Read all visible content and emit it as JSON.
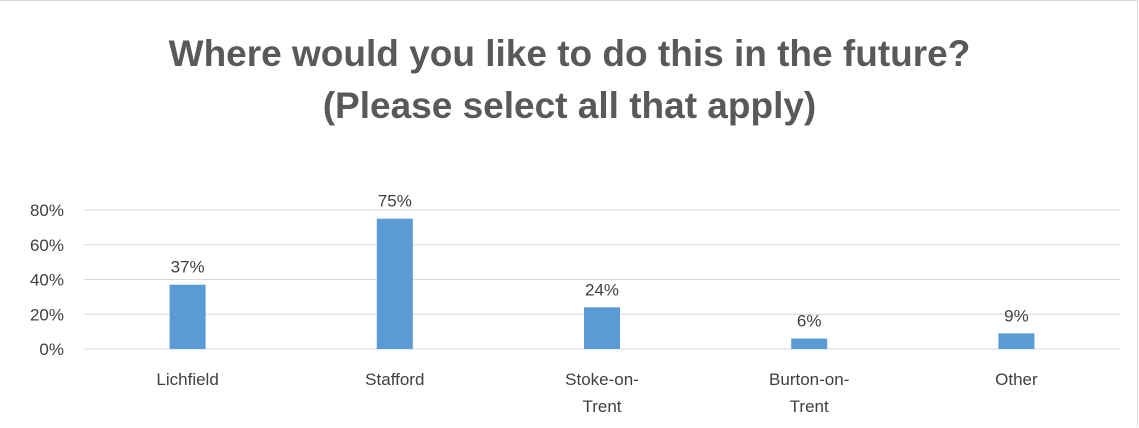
{
  "chart_data": {
    "type": "bar",
    "title": "Where would you like to do this in the future?",
    "subtitle": "(Please select all that apply)",
    "categories": [
      [
        "Lichfield"
      ],
      [
        "Stafford"
      ],
      [
        "Stoke-on-",
        "Trent"
      ],
      [
        "Burton-on-",
        "Trent"
      ],
      [
        "Other"
      ]
    ],
    "values": [
      37,
      75,
      24,
      6,
      9
    ],
    "data_labels": [
      "37%",
      "75%",
      "24%",
      "6%",
      "9%"
    ],
    "ylim": [
      0,
      80
    ],
    "yticks": [
      0,
      20,
      40,
      60,
      80
    ],
    "ytick_labels": [
      "0%",
      "20%",
      "40%",
      "60%",
      "80%"
    ],
    "xlabel": "",
    "ylabel": "",
    "grid": true,
    "legend": "none",
    "bar_color": "#5b9bd5",
    "grid_color": "#d9d9d9",
    "text_color": "#404040",
    "title_color": "#595959"
  }
}
